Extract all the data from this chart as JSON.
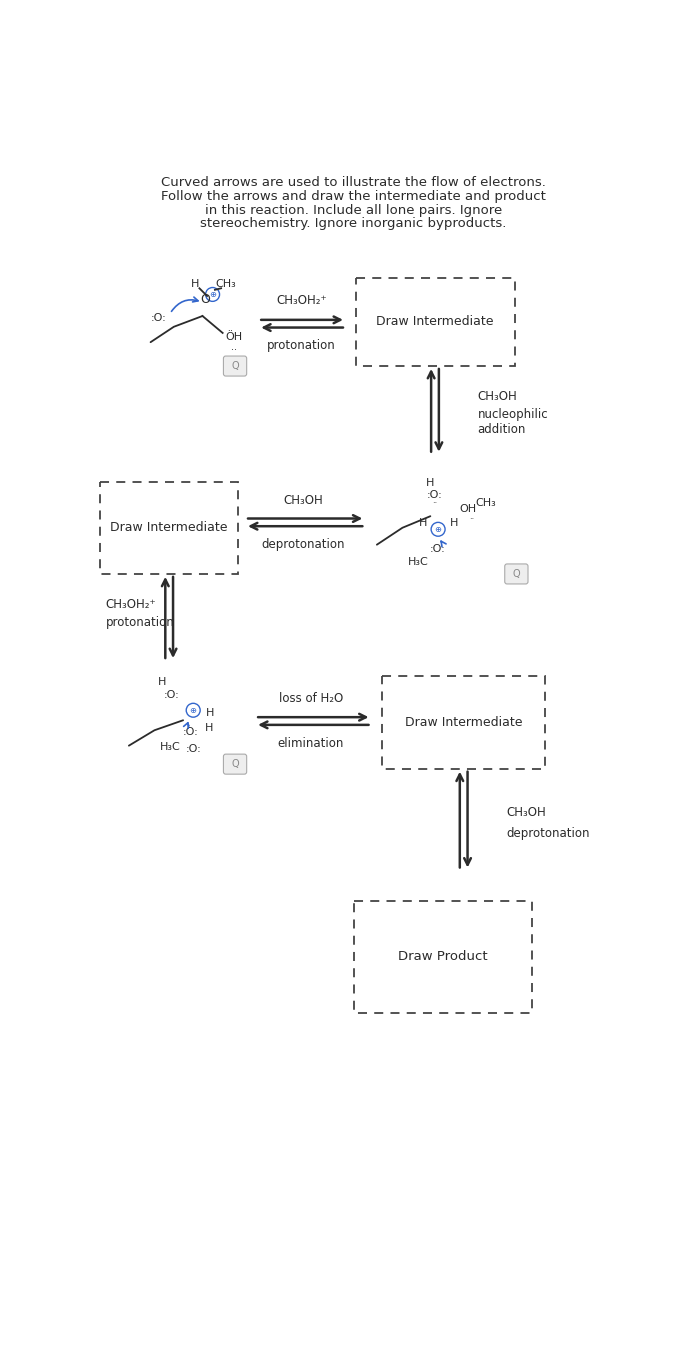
{
  "title_lines": [
    "Curved arrows are used to illustrate the flow of electrons.",
    "Follow the arrows and draw the intermediate and product",
    "in this reaction. Include all lone pairs. Ignore",
    "stereochemistry. Ignore inorganic byproducts."
  ],
  "bg_color": "#ffffff",
  "text_color": "#2b2b2b",
  "dashed_box_color": "#444444",
  "arrow_color": "#2b2b2b",
  "blue_color": "#3366cc",
  "section1": {
    "reagent_label": "CH₃OH₂⁺",
    "reaction_label": "protonation",
    "box_label": "Draw Intermediate"
  },
  "section2": {
    "reagent_label": "CH₃OH",
    "reaction_label_line1": "nucleophilic",
    "reaction_label_line2": "addition"
  },
  "section3": {
    "reagent_label": "CH₃OH",
    "reaction_label": "deprotonation",
    "box_label": "Draw Intermediate"
  },
  "section4": {
    "reagent_label": "CH₃OH₂⁺",
    "reaction_label": "protonation"
  },
  "section5": {
    "reagent_label": "loss of H₂O",
    "reaction_label": "elimination",
    "box_label": "Draw Intermediate"
  },
  "section6": {
    "reagent_label": "CH₃OH",
    "reaction_label": "deprotonation"
  },
  "section7": {
    "box_label": "Draw Product"
  }
}
